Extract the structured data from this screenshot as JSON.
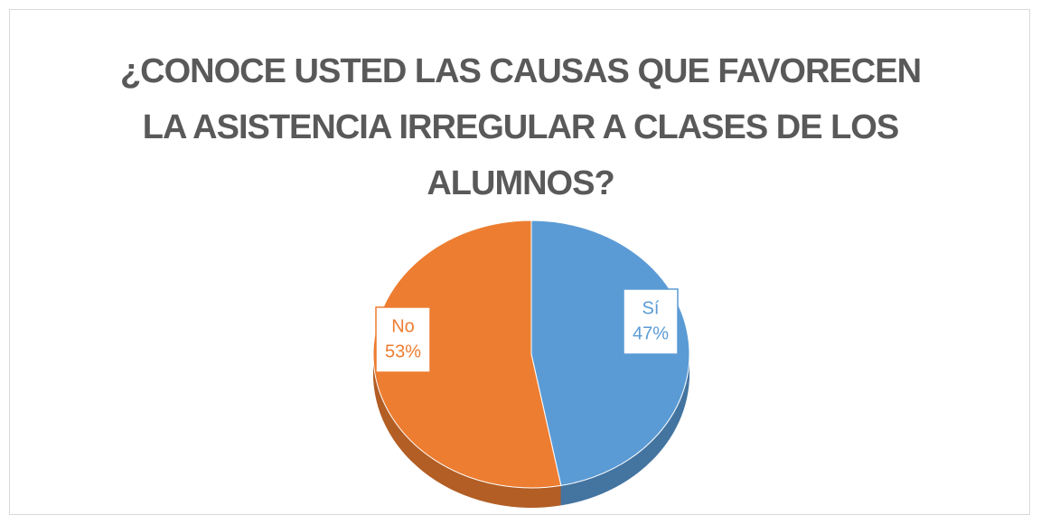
{
  "chart_data": {
    "type": "pie",
    "title": "¿CONOCE USTED LAS CAUSAS QUE FAVORECEN LA ASISTENCIA IRREGULAR A CLASES DE LOS ALUMNOS?",
    "categories": [
      "Sí",
      "No"
    ],
    "values": [
      47,
      53
    ],
    "value_labels": [
      "47%",
      "53%"
    ],
    "colors": [
      "#5b9bd5",
      "#ed7d31"
    ]
  }
}
